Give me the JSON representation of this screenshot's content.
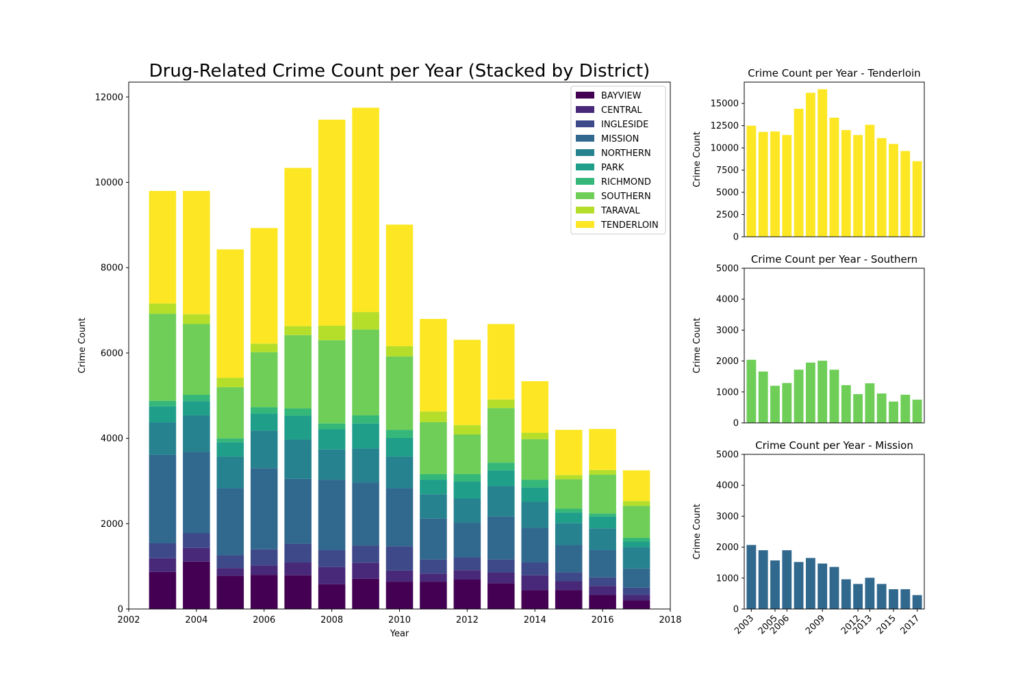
{
  "chart_data": [
    {
      "type": "bar",
      "stacked": true,
      "title": "Drug-Related Crime Count per Year (Stacked by District)",
      "xlabel": "Year",
      "ylabel": "Crime Count",
      "xlim": [
        2002,
        2018
      ],
      "ylim": [
        0,
        12350
      ],
      "xticks": [
        2002,
        2004,
        2006,
        2008,
        2010,
        2012,
        2014,
        2016,
        2018
      ],
      "yticks": [
        0,
        2000,
        4000,
        6000,
        8000,
        10000,
        12000
      ],
      "legend": "top-right",
      "x": [
        2003,
        2004,
        2005,
        2006,
        2007,
        2008,
        2009,
        2010,
        2011,
        2012,
        2013,
        2014,
        2015,
        2016,
        2017
      ],
      "series": [
        {
          "name": "BAYVIEW",
          "color": "#440154",
          "values": [
            870,
            1110,
            780,
            800,
            790,
            580,
            710,
            640,
            640,
            690,
            600,
            440,
            440,
            330,
            200
          ]
        },
        {
          "name": "CENTRAL",
          "color": "#482878",
          "values": [
            320,
            320,
            180,
            220,
            300,
            400,
            370,
            260,
            190,
            220,
            250,
            350,
            210,
            210,
            130
          ]
        },
        {
          "name": "INGLESIDE",
          "color": "#3e4989",
          "values": [
            350,
            350,
            300,
            380,
            440,
            400,
            410,
            570,
            330,
            300,
            310,
            300,
            210,
            200,
            170
          ]
        },
        {
          "name": "MISSION",
          "color": "#31688e",
          "values": [
            2070,
            1900,
            1570,
            1900,
            1520,
            1650,
            1470,
            1360,
            960,
            810,
            1010,
            810,
            640,
            640,
            450
          ]
        },
        {
          "name": "NORTHERN",
          "color": "#26828e",
          "values": [
            760,
            860,
            740,
            880,
            920,
            710,
            800,
            740,
            570,
            570,
            710,
            610,
            510,
            510,
            500
          ]
        },
        {
          "name": "PARK",
          "color": "#1f9e89",
          "values": [
            380,
            330,
            340,
            400,
            560,
            470,
            590,
            440,
            340,
            400,
            370,
            340,
            250,
            280,
            130
          ]
        },
        {
          "name": "RICHMOND",
          "color": "#35b779",
          "values": [
            130,
            150,
            90,
            150,
            170,
            140,
            190,
            190,
            130,
            170,
            180,
            180,
            90,
            70,
            90
          ]
        },
        {
          "name": "SOUTHERN",
          "color": "#6ece58",
          "values": [
            2040,
            1660,
            1200,
            1290,
            1720,
            1950,
            2010,
            1720,
            1220,
            930,
            1280,
            950,
            690,
            910,
            750
          ]
        },
        {
          "name": "TARAVAL",
          "color": "#b5de2b",
          "values": [
            240,
            230,
            220,
            200,
            210,
            340,
            410,
            240,
            250,
            220,
            200,
            150,
            100,
            110,
            110
          ]
        },
        {
          "name": "TENDERLOIN",
          "color": "#fde725",
          "values": [
            2640,
            2890,
            3010,
            2710,
            3710,
            4830,
            4790,
            2850,
            2170,
            2000,
            1770,
            1210,
            1060,
            960,
            720
          ]
        }
      ]
    },
    {
      "type": "bar",
      "title": "Crime Count per Year - Tenderloin",
      "ylabel": "Crime Count",
      "ylim": [
        0,
        17400
      ],
      "yticks": [
        0,
        2500,
        5000,
        7500,
        10000,
        12500,
        15000
      ],
      "color": "#fde725",
      "x": [
        2003,
        2004,
        2005,
        2006,
        2007,
        2008,
        2009,
        2010,
        2011,
        2012,
        2013,
        2014,
        2015,
        2016,
        2017
      ],
      "values": [
        12500,
        11800,
        11850,
        11450,
        14400,
        16200,
        16600,
        13400,
        12000,
        11450,
        12600,
        11100,
        10450,
        9650,
        8500
      ]
    },
    {
      "type": "bar",
      "title": "Crime Count per Year - Southern",
      "ylabel": "Crime Count",
      "ylim": [
        0,
        5000
      ],
      "yticks": [
        0,
        1000,
        2000,
        3000,
        4000,
        5000
      ],
      "color": "#6ece58",
      "x": [
        2003,
        2004,
        2005,
        2006,
        2007,
        2008,
        2009,
        2010,
        2011,
        2012,
        2013,
        2014,
        2015,
        2016,
        2017
      ],
      "values": [
        2040,
        1660,
        1200,
        1290,
        1720,
        1950,
        2010,
        1720,
        1220,
        930,
        1280,
        950,
        690,
        910,
        750
      ]
    },
    {
      "type": "bar",
      "title": "Crime Count per Year - Mission",
      "ylabel": "Crime Count",
      "ylim": [
        0,
        5000
      ],
      "yticks": [
        0,
        1000,
        2000,
        3000,
        4000,
        5000
      ],
      "xticks": [
        2003,
        2005,
        2006,
        2009,
        2012,
        2013,
        2015,
        2017
      ],
      "color": "#31688e",
      "x": [
        2003,
        2004,
        2005,
        2006,
        2007,
        2008,
        2009,
        2010,
        2011,
        2012,
        2013,
        2014,
        2015,
        2016,
        2017
      ],
      "values": [
        2070,
        1900,
        1570,
        1900,
        1520,
        1650,
        1470,
        1360,
        960,
        810,
        1010,
        810,
        640,
        640,
        450
      ]
    }
  ]
}
